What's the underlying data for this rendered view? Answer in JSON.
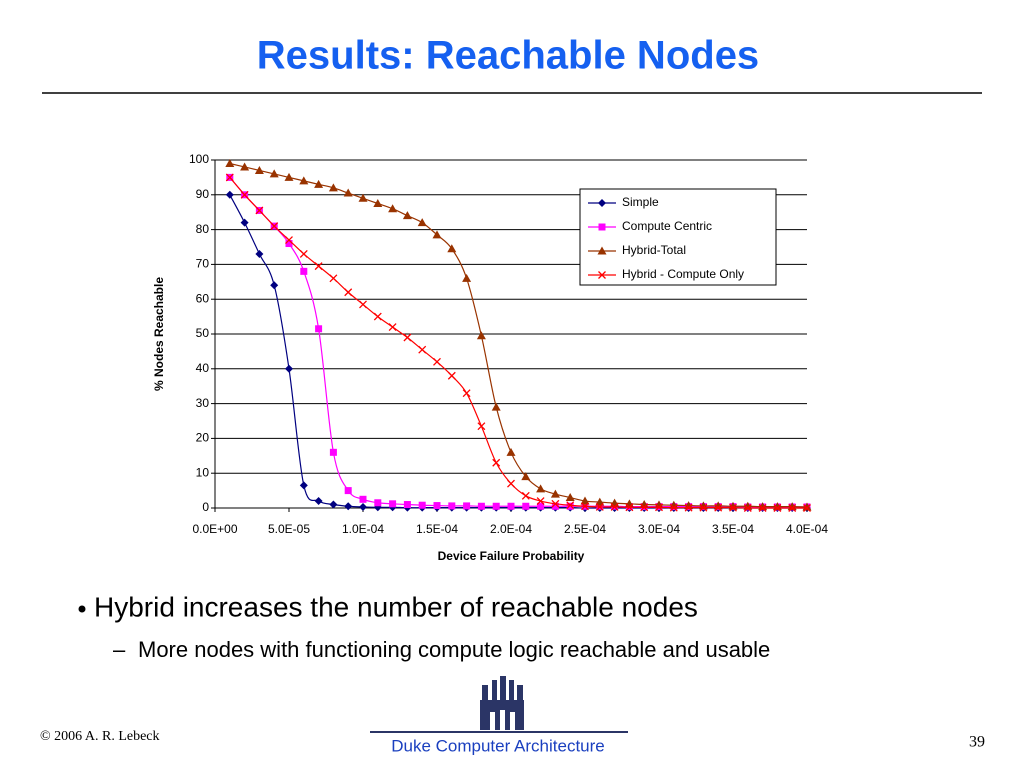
{
  "slide": {
    "title": "Results: Reachable Nodes",
    "bullet": "Hybrid increases the number of reachable nodes",
    "sub_bullet": "More nodes with functioning compute logic reachable and usable",
    "footer_left": "© 2006 A. R. Lebeck",
    "footer_center": "Duke Computer Architecture",
    "page_number": 39
  },
  "chart_data": {
    "type": "line",
    "xlabel": "Device Failure Probability",
    "ylabel": "% Nodes Reachable",
    "x": [
      1e-05,
      2e-05,
      3e-05,
      4e-05,
      5e-05,
      6e-05,
      7e-05,
      8e-05,
      9e-05,
      0.0001,
      0.00011,
      0.00012,
      0.00013,
      0.00014,
      0.00015,
      0.00016,
      0.00017,
      0.00018,
      0.00019,
      0.0002,
      0.00021,
      0.00022,
      0.00023,
      0.00024,
      0.00025,
      0.00026,
      0.00027,
      0.00028,
      0.00029,
      0.0003,
      0.00031,
      0.00032,
      0.00033,
      0.00034,
      0.00035,
      0.00036,
      0.00037,
      0.00038,
      0.00039,
      0.0004
    ],
    "series": [
      {
        "name": "Simple",
        "color": "#000080",
        "marker": "diamond",
        "values": [
          90,
          82,
          73,
          64,
          40,
          6.5,
          2,
          1,
          0.5,
          0.3,
          0.2,
          0.2,
          0.1,
          0.1,
          0.1,
          0.1,
          0.1,
          0.1,
          0.1,
          0.1,
          0.1,
          0.1,
          0.1,
          0.1,
          0,
          0,
          0,
          0,
          0,
          0,
          0,
          0,
          0,
          0,
          0,
          0,
          0,
          0,
          0,
          0
        ]
      },
      {
        "name": "Compute Centric",
        "color": "#ff00ff",
        "marker": "square",
        "values": [
          95,
          90,
          85.5,
          81,
          76,
          68,
          51.5,
          16,
          5,
          2.5,
          1.5,
          1.2,
          1,
          0.8,
          0.7,
          0.6,
          0.6,
          0.5,
          0.5,
          0.5,
          0.5,
          0.5,
          0.5,
          0.5,
          0.5,
          0.5,
          0.5,
          0.4,
          0.4,
          0.4,
          0.4,
          0.4,
          0.4,
          0.4,
          0.4,
          0.3,
          0.3,
          0.3,
          0.3,
          0.3
        ]
      },
      {
        "name": "Hybrid-Total",
        "color": "#993300",
        "marker": "triangle",
        "values": [
          99,
          98,
          97,
          96,
          95,
          94,
          93,
          92,
          90.5,
          89,
          87.5,
          86,
          84,
          82,
          78.5,
          74.5,
          66,
          49.5,
          29,
          16,
          9,
          5.5,
          4,
          3,
          2,
          1.7,
          1.4,
          1.2,
          1,
          0.9,
          0.8,
          0.7,
          0.6,
          0.6,
          0.5,
          0.5,
          0.4,
          0.4,
          0.4,
          0.3
        ]
      },
      {
        "name": "Hybrid - Compute Only",
        "color": "#ff0000",
        "marker": "x",
        "values": [
          95,
          90,
          85.5,
          81,
          77,
          73,
          69.5,
          66,
          62,
          58.5,
          55,
          52,
          49,
          45.5,
          42,
          38,
          33,
          23.5,
          13,
          7,
          3.5,
          2,
          1.2,
          0.8,
          0.5,
          0.3,
          0.3,
          0.2,
          0.2,
          0.2,
          0.1,
          0.1,
          0.1,
          0.1,
          0.1,
          0,
          0,
          0,
          0,
          0
        ]
      }
    ],
    "xlim": [
      0,
      0.0004
    ],
    "xticks": [
      {
        "value": 0,
        "label": "0.0E+00"
      },
      {
        "value": 5e-05,
        "label": "5.0E-05"
      },
      {
        "value": 0.0001,
        "label": "1.0E-04"
      },
      {
        "value": 0.00015,
        "label": "1.5E-04"
      },
      {
        "value": 0.0002,
        "label": "2.0E-04"
      },
      {
        "value": 0.00025,
        "label": "2.5E-04"
      },
      {
        "value": 0.0003,
        "label": "3.0E-04"
      },
      {
        "value": 0.00035,
        "label": "3.5E-04"
      },
      {
        "value": 0.0004,
        "label": "4.0E-04"
      }
    ],
    "ylim": [
      0,
      100
    ],
    "yticks": [
      0,
      10,
      20,
      30,
      40,
      50,
      60,
      70,
      80,
      90,
      100
    ],
    "grid": true,
    "legend": "upper-right"
  }
}
